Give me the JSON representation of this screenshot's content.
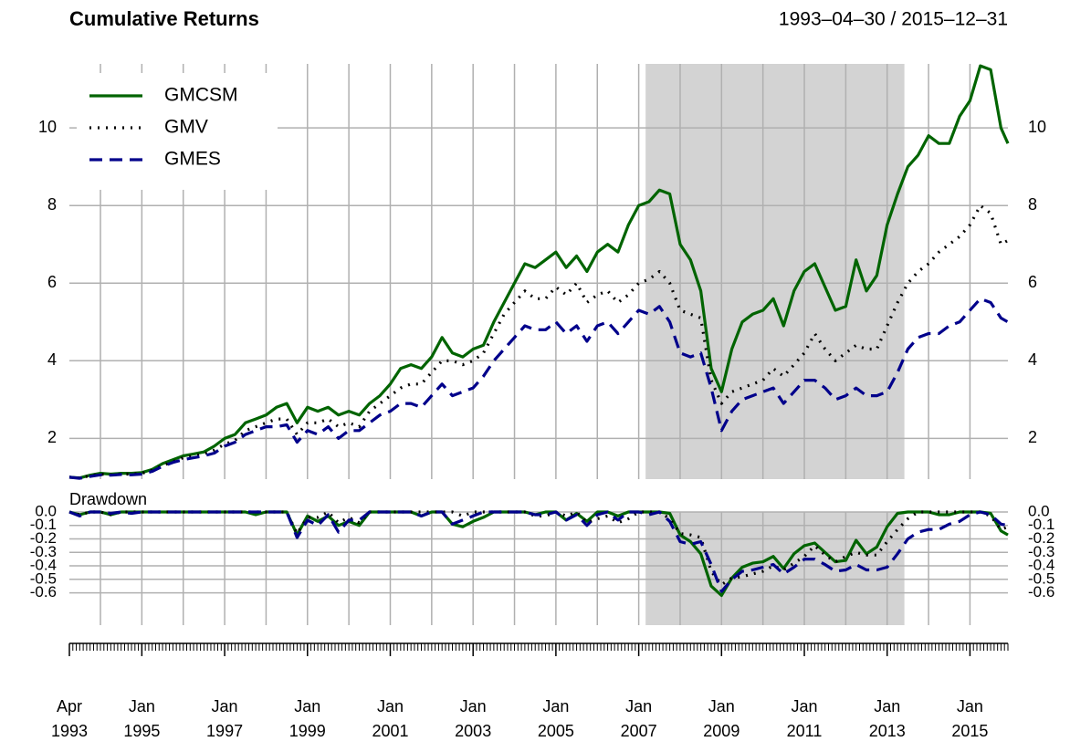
{
  "chart_data": [
    {
      "type": "line",
      "title": "Cumulative Returns",
      "subtitle": "1993–04–30 / 2015–12–31",
      "x": [
        "1993-04",
        "1993-07",
        "1993-10",
        "1994-01",
        "1994-04",
        "1994-07",
        "1994-10",
        "1995-01",
        "1995-04",
        "1995-07",
        "1995-10",
        "1996-01",
        "1996-04",
        "1996-07",
        "1996-10",
        "1997-01",
        "1997-04",
        "1997-07",
        "1997-10",
        "1998-01",
        "1998-04",
        "1998-07",
        "1998-10",
        "1999-01",
        "1999-04",
        "1999-07",
        "1999-10",
        "2000-01",
        "2000-04",
        "2000-07",
        "2000-10",
        "2001-01",
        "2001-04",
        "2001-07",
        "2001-10",
        "2002-01",
        "2002-04",
        "2002-07",
        "2002-10",
        "2003-01",
        "2003-04",
        "2003-07",
        "2003-10",
        "2004-01",
        "2004-04",
        "2004-07",
        "2004-10",
        "2005-01",
        "2005-04",
        "2005-07",
        "2005-10",
        "2006-01",
        "2006-04",
        "2006-07",
        "2006-10",
        "2007-01",
        "2007-04",
        "2007-07",
        "2007-10",
        "2008-01",
        "2008-04",
        "2008-07",
        "2008-10",
        "2009-01",
        "2009-04",
        "2009-07",
        "2009-10",
        "2010-01",
        "2010-04",
        "2010-07",
        "2010-10",
        "2011-01",
        "2011-04",
        "2011-07",
        "2011-10",
        "2012-01",
        "2012-04",
        "2012-07",
        "2012-10",
        "2013-01",
        "2013-04",
        "2013-07",
        "2013-10",
        "2014-01",
        "2014-04",
        "2014-07",
        "2014-10",
        "2015-01",
        "2015-04",
        "2015-07",
        "2015-10",
        "2015-12"
      ],
      "series": [
        {
          "name": "GMCSM",
          "color": "#006400",
          "dash": "solid",
          "values": [
            1.0,
            0.98,
            1.05,
            1.1,
            1.08,
            1.1,
            1.1,
            1.12,
            1.2,
            1.35,
            1.45,
            1.55,
            1.6,
            1.65,
            1.8,
            2.0,
            2.1,
            2.4,
            2.5,
            2.6,
            2.8,
            2.9,
            2.4,
            2.8,
            2.7,
            2.8,
            2.6,
            2.7,
            2.6,
            2.9,
            3.1,
            3.4,
            3.8,
            3.9,
            3.8,
            4.1,
            4.6,
            4.2,
            4.1,
            4.3,
            4.4,
            5.0,
            5.5,
            6.0,
            6.5,
            6.4,
            6.6,
            6.8,
            6.4,
            6.7,
            6.3,
            6.8,
            7.0,
            6.8,
            7.5,
            8.0,
            8.1,
            8.4,
            8.3,
            7.0,
            6.6,
            5.8,
            3.8,
            3.2,
            4.3,
            5.0,
            5.2,
            5.3,
            5.6,
            4.9,
            5.8,
            6.3,
            6.5,
            5.9,
            5.3,
            5.4,
            6.6,
            5.8,
            6.2,
            7.5,
            8.3,
            9.0,
            9.3,
            9.8,
            9.6,
            9.6,
            10.3,
            10.7,
            11.6,
            11.5,
            10.0,
            9.6
          ]
        },
        {
          "name": "GMV",
          "color": "#000000",
          "dash": "dotted",
          "values": [
            1.0,
            0.98,
            1.04,
            1.08,
            1.06,
            1.08,
            1.08,
            1.1,
            1.18,
            1.3,
            1.4,
            1.5,
            1.55,
            1.6,
            1.7,
            1.85,
            1.95,
            2.2,
            2.3,
            2.4,
            2.5,
            2.5,
            2.1,
            2.4,
            2.4,
            2.5,
            2.3,
            2.4,
            2.3,
            2.7,
            2.9,
            3.1,
            3.3,
            3.4,
            3.4,
            3.7,
            4.0,
            4.0,
            3.9,
            4.0,
            4.2,
            4.7,
            5.2,
            5.5,
            5.8,
            5.6,
            5.6,
            5.9,
            5.7,
            6.0,
            5.5,
            5.7,
            5.8,
            5.5,
            5.7,
            6.0,
            6.1,
            6.3,
            6.0,
            5.3,
            5.2,
            5.1,
            3.5,
            2.9,
            3.2,
            3.3,
            3.4,
            3.5,
            3.8,
            3.6,
            3.9,
            4.2,
            4.7,
            4.3,
            4.0,
            4.2,
            4.4,
            4.3,
            4.3,
            4.9,
            5.5,
            6.0,
            6.3,
            6.5,
            6.8,
            7.0,
            7.2,
            7.5,
            8.0,
            7.8,
            7.0,
            7.1
          ]
        },
        {
          "name": "GMES",
          "color": "#00008b",
          "dash": "dashed",
          "values": [
            1.0,
            0.97,
            1.02,
            1.06,
            1.05,
            1.07,
            1.06,
            1.08,
            1.15,
            1.28,
            1.38,
            1.45,
            1.5,
            1.55,
            1.62,
            1.8,
            1.9,
            2.1,
            2.2,
            2.3,
            2.3,
            2.35,
            1.9,
            2.2,
            2.1,
            2.3,
            2.0,
            2.2,
            2.2,
            2.4,
            2.6,
            2.7,
            2.9,
            2.9,
            2.8,
            3.1,
            3.4,
            3.1,
            3.2,
            3.3,
            3.6,
            4.0,
            4.3,
            4.6,
            4.9,
            4.8,
            4.8,
            5.0,
            4.7,
            4.9,
            4.5,
            4.9,
            5.0,
            4.7,
            5.0,
            5.3,
            5.2,
            5.4,
            5.0,
            4.2,
            4.1,
            4.2,
            3.3,
            2.2,
            2.7,
            3.0,
            3.1,
            3.2,
            3.3,
            2.9,
            3.2,
            3.5,
            3.5,
            3.3,
            3.0,
            3.1,
            3.3,
            3.1,
            3.1,
            3.2,
            3.7,
            4.3,
            4.6,
            4.7,
            4.7,
            4.9,
            5.0,
            5.3,
            5.6,
            5.5,
            5.1,
            5.0
          ]
        }
      ],
      "xlim": [
        "1993-04",
        "2015-12"
      ],
      "ylim": [
        0.95,
        11.65
      ],
      "yticks": [
        2,
        4,
        6,
        8,
        10
      ],
      "highlight": [
        "2007-03",
        "2013-06"
      ],
      "grid": true,
      "legend": "top-left"
    },
    {
      "type": "line",
      "title": "Drawdown",
      "x": [
        "1993-04",
        "1993-07",
        "1993-10",
        "1994-01",
        "1994-04",
        "1994-07",
        "1994-10",
        "1995-01",
        "1995-04",
        "1995-07",
        "1995-10",
        "1996-01",
        "1996-04",
        "1996-07",
        "1996-10",
        "1997-01",
        "1997-04",
        "1997-07",
        "1997-10",
        "1998-01",
        "1998-04",
        "1998-07",
        "1998-10",
        "1999-01",
        "1999-04",
        "1999-07",
        "1999-10",
        "2000-01",
        "2000-04",
        "2000-07",
        "2000-10",
        "2001-01",
        "2001-04",
        "2001-07",
        "2001-10",
        "2002-01",
        "2002-04",
        "2002-07",
        "2002-10",
        "2003-01",
        "2003-04",
        "2003-07",
        "2003-10",
        "2004-01",
        "2004-04",
        "2004-07",
        "2004-10",
        "2005-01",
        "2005-04",
        "2005-07",
        "2005-10",
        "2006-01",
        "2006-04",
        "2006-07",
        "2006-10",
        "2007-01",
        "2007-04",
        "2007-07",
        "2007-10",
        "2008-01",
        "2008-04",
        "2008-07",
        "2008-10",
        "2009-01",
        "2009-04",
        "2009-07",
        "2009-10",
        "2010-01",
        "2010-04",
        "2010-07",
        "2010-10",
        "2011-01",
        "2011-04",
        "2011-07",
        "2011-10",
        "2012-01",
        "2012-04",
        "2012-07",
        "2012-10",
        "2013-01",
        "2013-04",
        "2013-07",
        "2013-10",
        "2014-01",
        "2014-04",
        "2014-07",
        "2014-10",
        "2015-01",
        "2015-04",
        "2015-07",
        "2015-10",
        "2015-12"
      ],
      "series": [
        {
          "name": "GMCSM",
          "color": "#006400",
          "dash": "solid",
          "values": [
            0,
            -0.02,
            0,
            0,
            -0.02,
            0,
            0,
            0,
            0,
            0,
            0,
            0,
            0,
            0,
            0,
            0,
            0,
            0,
            -0.02,
            0,
            0,
            0,
            -0.17,
            -0.03,
            -0.07,
            -0.03,
            -0.1,
            -0.07,
            -0.1,
            0,
            0,
            0,
            0,
            0,
            -0.03,
            0,
            0,
            -0.09,
            -0.11,
            -0.07,
            -0.04,
            0,
            0,
            0,
            0,
            -0.02,
            0,
            0,
            -0.06,
            -0.01,
            -0.07,
            0,
            0,
            -0.03,
            0,
            0,
            0,
            0,
            -0.01,
            -0.17,
            -0.22,
            -0.31,
            -0.55,
            -0.62,
            -0.49,
            -0.41,
            -0.38,
            -0.37,
            -0.33,
            -0.42,
            -0.31,
            -0.25,
            -0.23,
            -0.3,
            -0.37,
            -0.36,
            -0.21,
            -0.31,
            -0.26,
            -0.11,
            -0.01,
            0,
            0,
            0,
            -0.02,
            -0.02,
            0,
            0,
            0,
            -0.01,
            -0.14,
            -0.17
          ]
        },
        {
          "name": "GMV",
          "color": "#000000",
          "dash": "dotted",
          "values": [
            0,
            -0.02,
            0,
            0,
            -0.02,
            0,
            0,
            0,
            0,
            0,
            0,
            0,
            0,
            0,
            0,
            0,
            0,
            0,
            0,
            0,
            0,
            0,
            -0.16,
            -0.04,
            -0.04,
            0,
            -0.08,
            -0.04,
            -0.08,
            0,
            0,
            0,
            0,
            0,
            0,
            0,
            0,
            0,
            -0.03,
            0,
            0,
            0,
            0,
            0,
            0,
            -0.03,
            -0.03,
            0,
            -0.03,
            0,
            -0.08,
            -0.05,
            -0.03,
            -0.08,
            -0.05,
            0,
            0,
            0,
            -0.05,
            -0.16,
            -0.17,
            -0.19,
            -0.44,
            -0.54,
            -0.49,
            -0.48,
            -0.46,
            -0.44,
            -0.4,
            -0.43,
            -0.38,
            -0.33,
            -0.25,
            -0.32,
            -0.37,
            -0.33,
            -0.3,
            -0.32,
            -0.32,
            -0.22,
            -0.13,
            -0.05,
            0,
            0,
            0,
            0,
            0,
            0,
            0,
            -0.03,
            -0.13,
            -0.11
          ]
        },
        {
          "name": "GMES",
          "color": "#00008b",
          "dash": "dashed",
          "values": [
            0,
            -0.03,
            0,
            0,
            -0.01,
            0,
            -0.01,
            0,
            0,
            0,
            0,
            0,
            0,
            0,
            0,
            0,
            0,
            0,
            0,
            0,
            0,
            0,
            -0.19,
            -0.06,
            -0.1,
            -0.02,
            -0.15,
            -0.06,
            -0.06,
            0,
            0,
            0,
            0,
            0,
            -0.03,
            0,
            0,
            -0.09,
            -0.06,
            -0.03,
            0,
            0,
            0,
            0,
            0,
            -0.02,
            -0.02,
            0,
            -0.06,
            -0.02,
            -0.1,
            -0.02,
            0,
            -0.06,
            0,
            0,
            -0.02,
            0,
            -0.07,
            -0.22,
            -0.24,
            -0.22,
            -0.39,
            -0.59,
            -0.5,
            -0.44,
            -0.43,
            -0.41,
            -0.39,
            -0.46,
            -0.41,
            -0.35,
            -0.35,
            -0.39,
            -0.44,
            -0.43,
            -0.39,
            -0.43,
            -0.43,
            -0.41,
            -0.31,
            -0.2,
            -0.15,
            -0.13,
            -0.13,
            -0.09,
            -0.07,
            -0.02,
            0,
            -0.02,
            -0.09,
            -0.1
          ]
        }
      ],
      "xlim": [
        "1993-04",
        "2015-12"
      ],
      "ylim": [
        -0.84,
        0.0
      ],
      "yticks": [
        {
          "value": 0.0,
          "label": "0.0"
        },
        -0.1,
        -0.2,
        -0.3,
        -0.4,
        -0.5,
        -0.6
      ],
      "highlight": [
        "2007-03",
        "2013-06"
      ],
      "grid": true,
      "xticks": [
        {
          "value": "1993-04",
          "label": "Apr 1993"
        },
        {
          "value": "1995-01",
          "label": "Jan 1995"
        },
        {
          "value": "1997-01",
          "label": "Jan 1997"
        },
        {
          "value": "1999-01",
          "label": "Jan 1999"
        },
        {
          "value": "2001-01",
          "label": "Jan 2001"
        },
        {
          "value": "2003-01",
          "label": "Jan 2003"
        },
        {
          "value": "2005-01",
          "label": "Jan 2005"
        },
        {
          "value": "2007-01",
          "label": "Jan 2007"
        },
        {
          "value": "2009-01",
          "label": "Jan 2009"
        },
        {
          "value": "2011-01",
          "label": "Jan 2011"
        },
        {
          "value": "2013-01",
          "label": "Jan 2013"
        },
        {
          "value": "2015-01",
          "label": "Jan 2015"
        }
      ]
    }
  ]
}
